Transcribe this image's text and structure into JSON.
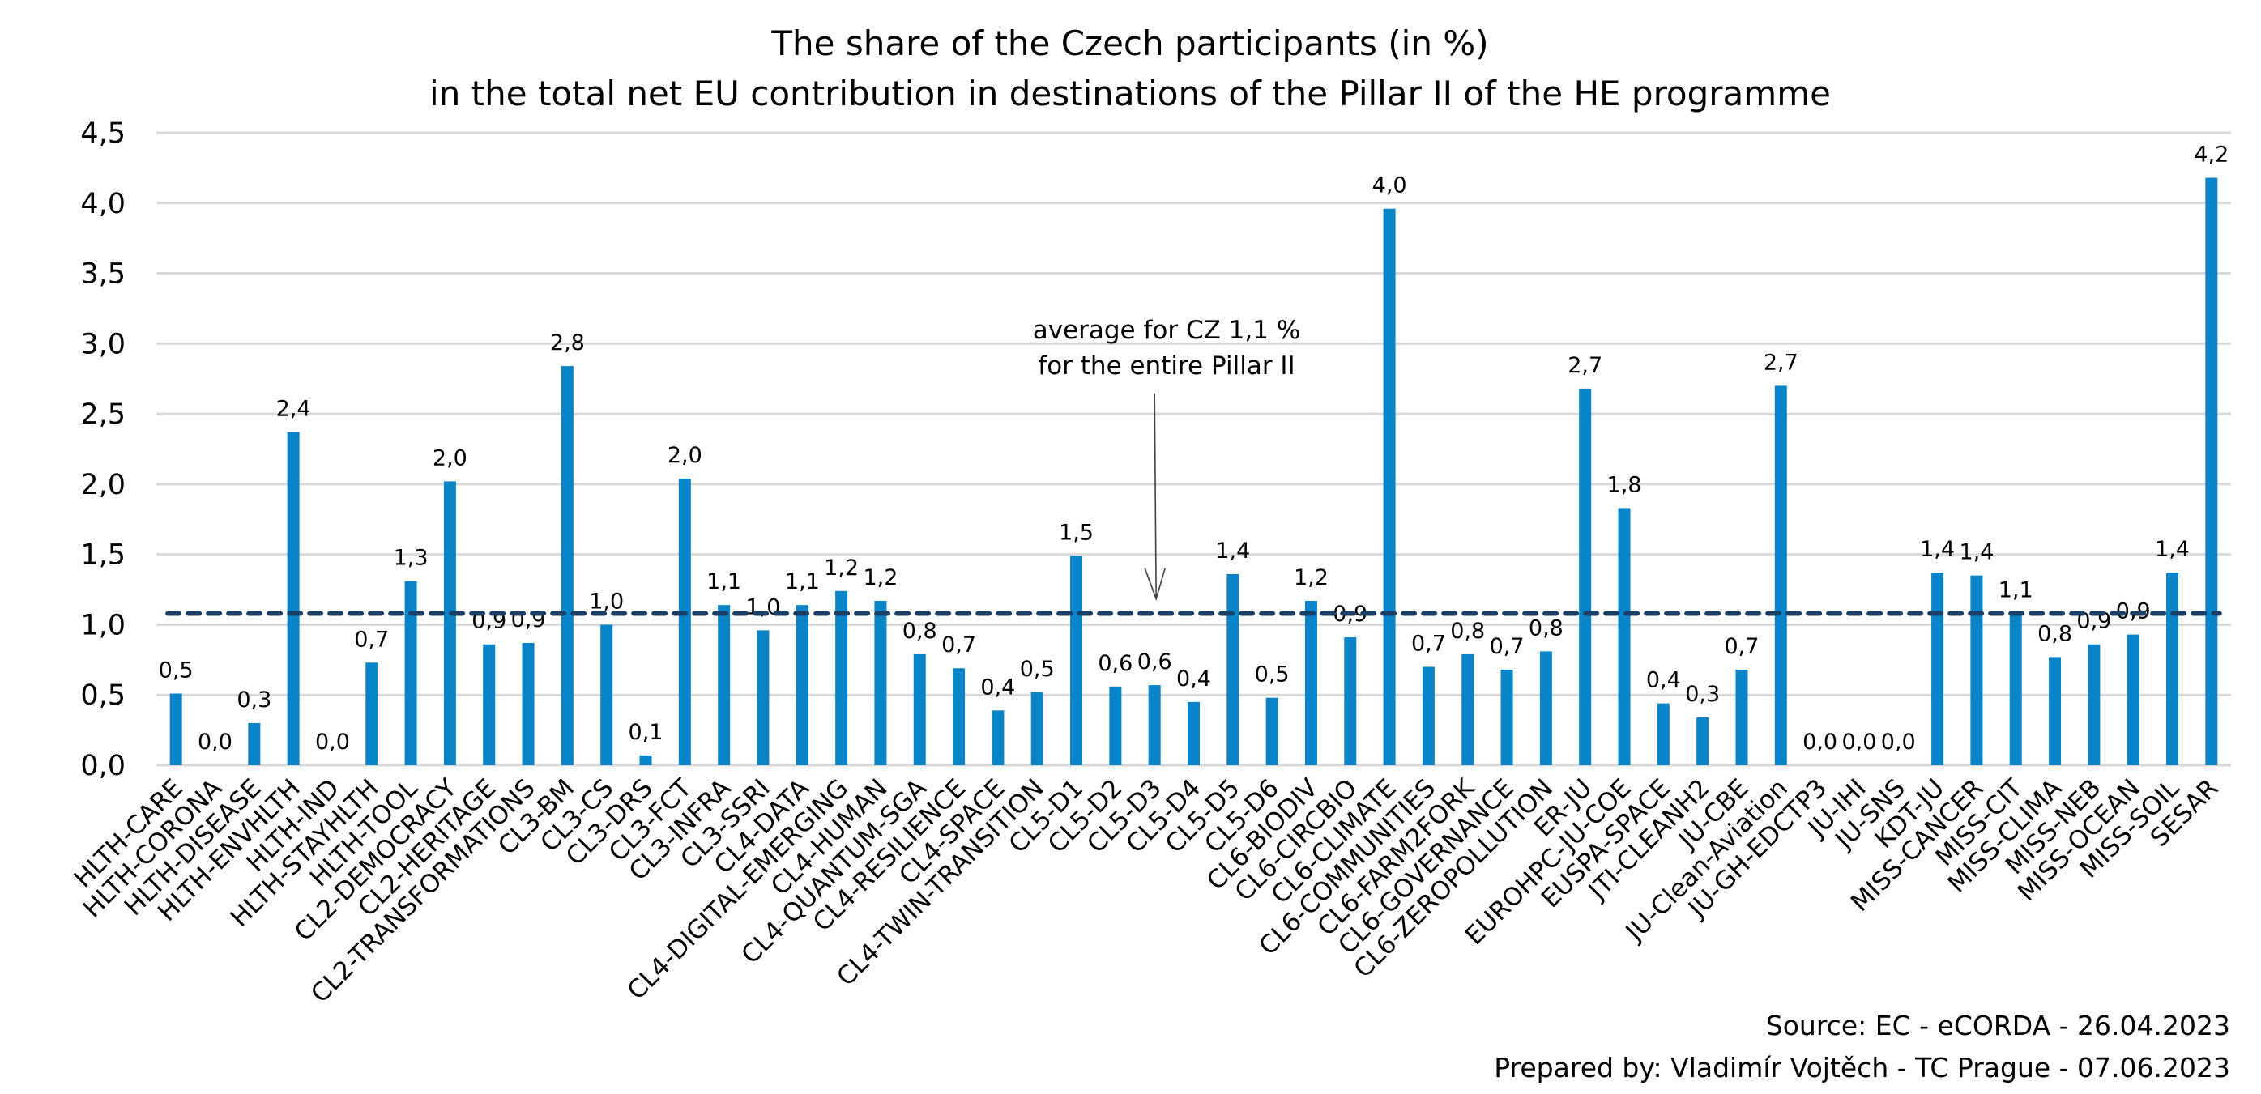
{
  "chart_data": {
    "type": "bar",
    "title": [
      "The share of the Czech participants (in %)",
      "in the total net EU contribution in destinations of the Pillar II of the HE programme"
    ],
    "xlabel": "",
    "ylabel": "",
    "ylim": [
      0,
      4.5
    ],
    "yticks": [
      0,
      0.5,
      1.0,
      1.5,
      2.0,
      2.5,
      3.0,
      3.5,
      4.0,
      4.5
    ],
    "ytick_labels": [
      "0,0",
      "0,5",
      "1,0",
      "1,5",
      "2,0",
      "2,5",
      "3,0",
      "3,5",
      "4,0",
      "4,5"
    ],
    "grid": true,
    "legend": "none",
    "bar_color": "#0a84c8",
    "categories": [
      "HLTH-CARE",
      "HLTH-CORONA",
      "HLTH-DISEASE",
      "HLTH-ENVHLTH",
      "HLTH-IND",
      "HLTH-STAYHLTH",
      "HLTH-TOOL",
      "CL2-DEMOCRACY",
      "CL2-HERITAGE",
      "CL2-TRANSFORMATIONS",
      "CL3-BM",
      "CL3-CS",
      "CL3-DRS",
      "CL3-FCT",
      "CL3-INFRA",
      "CL3-SSRI",
      "CL4-DATA",
      "CL4-DIGITAL-EMERGING",
      "CL4-HUMAN",
      "CL4-QUANTUM-SGA",
      "CL4-RESILIENCE",
      "CL4-SPACE",
      "CL4-TWIN-TRANSITION",
      "CL5-D1",
      "CL5-D2",
      "CL5-D3",
      "CL5-D4",
      "CL5-D5",
      "CL5-D6",
      "CL6-BIODIV",
      "CL6-CIRCBIO",
      "CL6-CLIMATE",
      "CL6-COMMUNITIES",
      "CL6-FARM2FORK",
      "CL6-GOVERNANCE",
      "CL6-ZEROPOLLUTION",
      "ER-JU",
      "EUROHPC-JU-COE",
      "EUSPA-SPACE",
      "JTI-CLEANH2",
      "JU-CBE",
      "JU-Clean-Aviation",
      "JU-GH-EDCTP3",
      "JU-IHI",
      "JU-SNS",
      "KDT-JU",
      "MISS-CANCER",
      "MISS-CIT",
      "MISS-CLIMA",
      "MISS-NEB",
      "MISS-OCEAN",
      "MISS-SOIL",
      "SESAR"
    ],
    "values": [
      0.51,
      0.0,
      0.3,
      2.37,
      0.0,
      0.73,
      1.31,
      2.02,
      0.86,
      0.87,
      2.84,
      1.0,
      0.07,
      2.04,
      1.14,
      0.96,
      1.14,
      1.24,
      1.17,
      0.79,
      0.69,
      0.39,
      0.52,
      1.49,
      0.56,
      0.57,
      0.45,
      1.36,
      0.48,
      1.17,
      0.91,
      3.96,
      0.7,
      0.79,
      0.68,
      0.81,
      2.68,
      1.83,
      0.44,
      0.34,
      0.68,
      2.7,
      0.0,
      0.0,
      0.0,
      1.37,
      1.35,
      1.08,
      0.77,
      0.86,
      0.93,
      1.37,
      4.18
    ],
    "data_labels": [
      "0,5",
      "0,0",
      "0,3",
      "2,4",
      "0,0",
      "0,7",
      "1,3",
      "2,0",
      "0,9",
      "0,9",
      "2,8",
      "1,0",
      "0,1",
      "2,0",
      "1,1",
      "1,0",
      "1,1",
      "1,2",
      "1,2",
      "0,8",
      "0,7",
      "0,4",
      "0,5",
      "1,5",
      "0,6",
      "0,6",
      "0,4",
      "1,4",
      "0,5",
      "1,2",
      "0,9",
      "4,0",
      "0,7",
      "0,8",
      "0,7",
      "0,8",
      "2,7",
      "1,8",
      "0,4",
      "0,3",
      "0,7",
      "2,7",
      "0,0",
      "0,0",
      "0,0",
      "1,4",
      "1,4",
      "1,1",
      "0,8",
      "0,9",
      "0,9",
      "1,4",
      "4,2"
    ],
    "reference_line": {
      "value": 1.08,
      "style": "dashed",
      "color": "#1b3f66"
    },
    "annotation": {
      "lines": [
        "average for CZ 1,1 %",
        "for the entire Pillar II"
      ],
      "points_to_category": "CL5-D3"
    },
    "footer": [
      "Source: EC - eCORDA - 26.04.2023",
      "Prepared by: Vladimír Vojtěch -  TC Prague - 07.06.2023"
    ]
  }
}
